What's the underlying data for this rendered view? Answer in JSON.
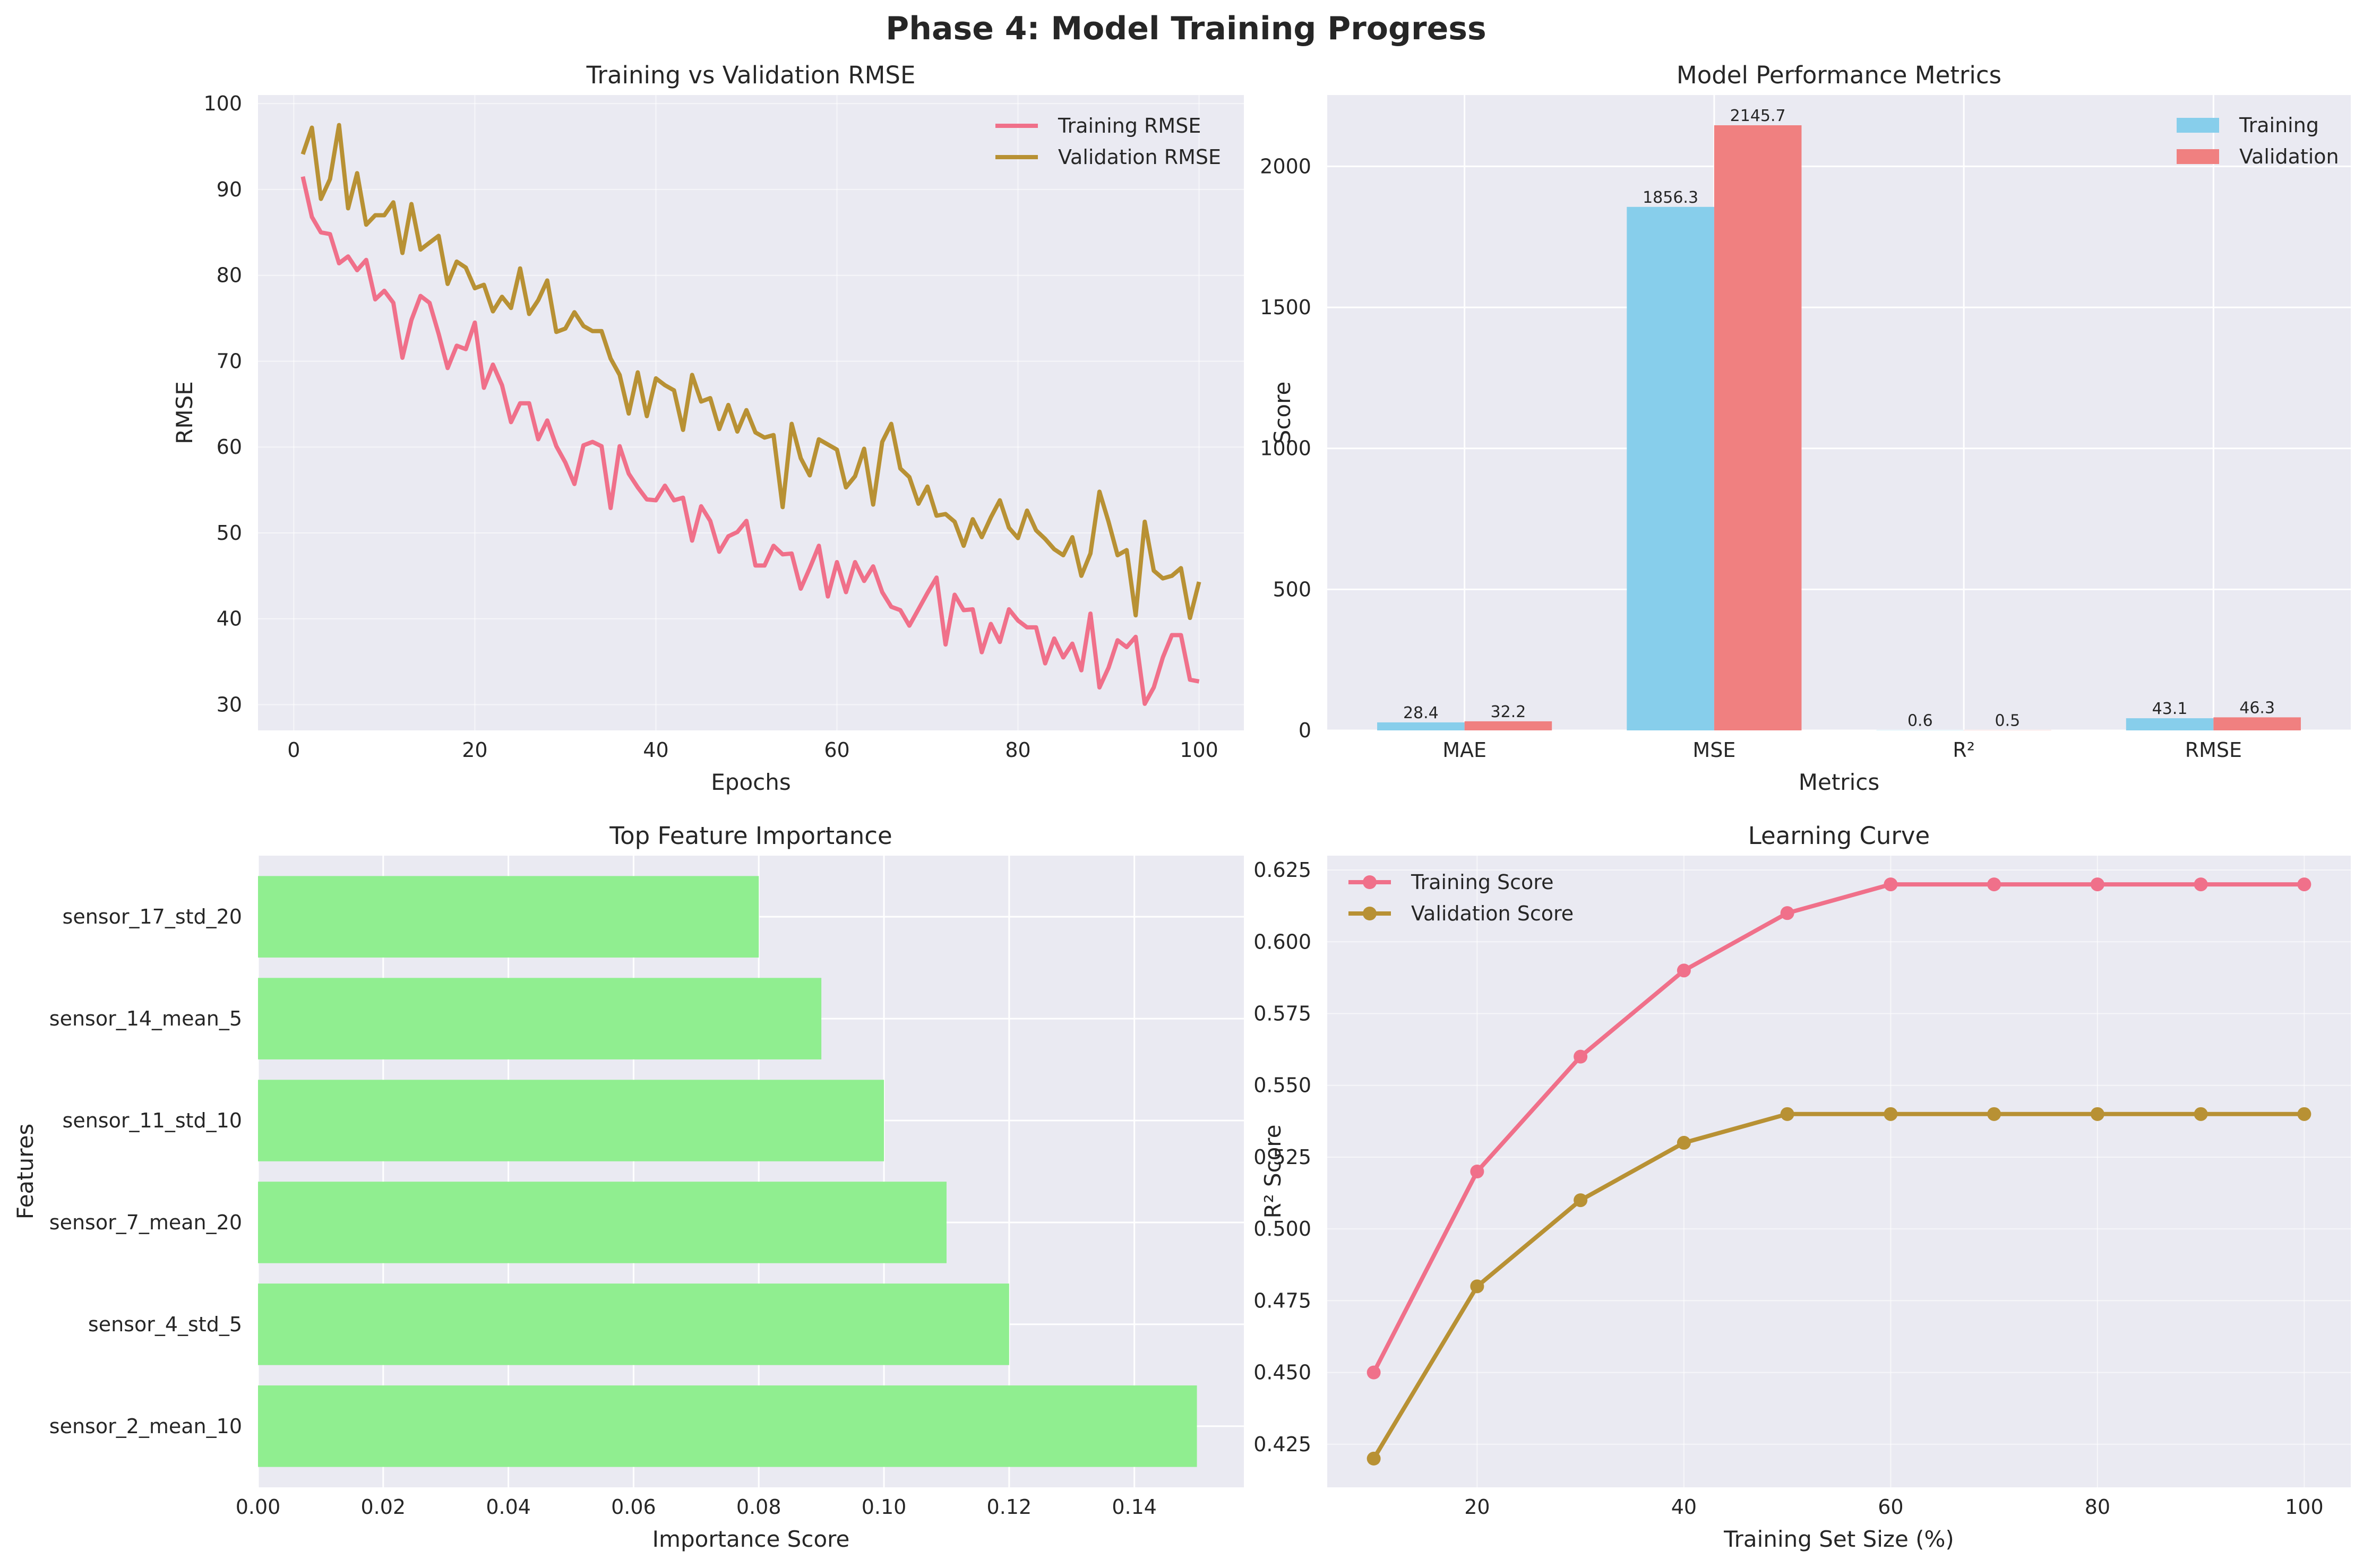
{
  "figure": {
    "suptitle": "Phase 4: Model Training Progress"
  },
  "chart_data": [
    {
      "type": "line",
      "title": "Training vs Validation RMSE",
      "xlabel": "Epochs",
      "ylabel": "RMSE",
      "xlim": [
        -3.95,
        104.95
      ],
      "ylim": [
        27.0,
        101.0
      ],
      "xticks": [
        0,
        20,
        40,
        60,
        80,
        100
      ],
      "yticks": [
        30,
        40,
        50,
        60,
        70,
        80,
        90,
        100
      ],
      "grid": true,
      "legend": "top-right",
      "x": [
        1,
        2,
        3,
        4,
        5,
        6,
        7,
        8,
        9,
        10,
        11,
        12,
        13,
        14,
        15,
        16,
        17,
        18,
        19,
        20,
        21,
        22,
        23,
        24,
        25,
        26,
        27,
        28,
        29,
        30,
        31,
        32,
        33,
        34,
        35,
        36,
        37,
        38,
        39,
        40,
        41,
        42,
        43,
        44,
        45,
        46,
        47,
        48,
        49,
        50,
        51,
        52,
        53,
        54,
        55,
        56,
        57,
        58,
        59,
        60,
        61,
        62,
        63,
        64,
        65,
        66,
        67,
        68,
        69,
        70,
        71,
        72,
        73,
        74,
        75,
        76,
        77,
        78,
        79,
        80,
        81,
        82,
        83,
        84,
        85,
        86,
        87,
        88,
        89,
        90,
        91,
        92,
        93,
        94,
        95,
        96,
        97,
        98,
        99,
        100
      ],
      "series": [
        {
          "name": "Training RMSE",
          "color": "#f0708a",
          "values": [
            91.5,
            86.8,
            85.0,
            84.8,
            81.4,
            82.2,
            80.6,
            81.8,
            77.2,
            78.2,
            76.8,
            70.4,
            74.8,
            77.6,
            76.8,
            73.2,
            69.2,
            71.8,
            71.4,
            74.5,
            66.9,
            69.6,
            67.2,
            62.9,
            65.1,
            65.1,
            60.9,
            63.1,
            60.1,
            58.2,
            55.7,
            60.2,
            60.6,
            60.1,
            52.9,
            60.1,
            56.9,
            55.3,
            53.9,
            53.8,
            55.5,
            53.8,
            54.1,
            49.1,
            53.1,
            51.4,
            47.8,
            49.6,
            50.1,
            51.4,
            46.2,
            46.2,
            48.5,
            47.5,
            47.6,
            43.5,
            45.9,
            48.5,
            42.6,
            46.6,
            43.1,
            46.6,
            44.4,
            46.1,
            43.1,
            41.4,
            41.0,
            39.2,
            41.1,
            43.0,
            44.8,
            37.0,
            42.8,
            41.0,
            41.1,
            36.1,
            39.4,
            37.3,
            41.1,
            39.8,
            39.0,
            39.0,
            34.8,
            37.7,
            35.5,
            37.1,
            34.0,
            40.6,
            32.0,
            34.3,
            37.5,
            36.7,
            37.9,
            30.1,
            32.0,
            35.5,
            38.1,
            38.1,
            32.9,
            32.7
          ]
        },
        {
          "name": "Validation RMSE",
          "color": "#b89134",
          "values": [
            94.1,
            97.2,
            88.9,
            91.2,
            97.5,
            87.8,
            91.9,
            85.9,
            87.0,
            87.0,
            88.5,
            82.6,
            88.3,
            83.0,
            83.8,
            84.6,
            79.0,
            81.6,
            80.9,
            78.5,
            78.9,
            75.8,
            77.5,
            76.2,
            80.8,
            75.5,
            77.1,
            79.4,
            73.4,
            73.8,
            75.7,
            74.1,
            73.5,
            73.5,
            70.3,
            68.4,
            63.9,
            68.7,
            63.6,
            68.0,
            67.2,
            66.6,
            62.0,
            68.4,
            65.3,
            65.7,
            62.1,
            64.9,
            61.8,
            64.3,
            61.7,
            61.1,
            61.4,
            53.0,
            62.7,
            58.7,
            56.7,
            60.9,
            60.3,
            59.7,
            55.3,
            56.6,
            59.8,
            53.3,
            60.6,
            62.7,
            57.5,
            56.5,
            53.4,
            55.4,
            52.0,
            52.2,
            51.3,
            48.5,
            51.6,
            49.5,
            51.8,
            53.8,
            50.6,
            49.4,
            52.6,
            50.3,
            49.3,
            48.1,
            47.4,
            49.5,
            45.0,
            47.6,
            54.8,
            51.3,
            47.4,
            48.0,
            40.4,
            51.3,
            45.6,
            44.7,
            45.0,
            45.9,
            40.1,
            44.3
          ]
        }
      ]
    },
    {
      "type": "bar",
      "title": "Model Performance Metrics",
      "xlabel": "Metrics",
      "ylabel": "Score",
      "categories": [
        "MAE",
        "MSE",
        "R²",
        "RMSE"
      ],
      "ylim": [
        0,
        2253
      ],
      "yticks": [
        0,
        500,
        1000,
        1500,
        2000
      ],
      "grid": true,
      "legend": "top-right",
      "series": [
        {
          "name": "Training",
          "color": "#87ceeb",
          "values": [
            28.4,
            1856.3,
            0.6,
            43.1
          ],
          "labels": [
            "28.4",
            "1856.3",
            "0.6",
            "43.1"
          ]
        },
        {
          "name": "Validation",
          "color": "#f08080",
          "values": [
            32.2,
            2145.7,
            0.5,
            46.3
          ],
          "labels": [
            "32.2",
            "2145.7",
            "0.5",
            "46.3"
          ]
        }
      ]
    },
    {
      "type": "bar",
      "orientation": "horizontal",
      "title": "Top Feature Importance",
      "xlabel": "Importance Score",
      "ylabel": "Features",
      "categories": [
        "sensor_2_mean_10",
        "sensor_4_std_5",
        "sensor_7_mean_20",
        "sensor_11_std_10",
        "sensor_14_mean_5",
        "sensor_17_std_20"
      ],
      "values": [
        0.15,
        0.12,
        0.11,
        0.1,
        0.09,
        0.08
      ],
      "color": "#90ee90",
      "xlim": [
        0,
        0.1575
      ],
      "xticks": [
        "0.00",
        "0.02",
        "0.04",
        "0.06",
        "0.08",
        "0.10",
        "0.12",
        "0.14"
      ],
      "grid": true
    },
    {
      "type": "line",
      "title": "Learning Curve",
      "xlabel": "Training Set Size (%)",
      "ylabel": "R² Score",
      "x": [
        10,
        20,
        30,
        40,
        50,
        60,
        70,
        80,
        90,
        100
      ],
      "xlim": [
        5.5,
        104.5
      ],
      "ylim": [
        0.41,
        0.63
      ],
      "xticks": [
        20,
        40,
        60,
        80,
        100
      ],
      "yticks": [
        "0.425",
        "0.450",
        "0.475",
        "0.500",
        "0.525",
        "0.550",
        "0.575",
        "0.600",
        "0.625"
      ],
      "grid": true,
      "legend": "top-left",
      "markers": true,
      "series": [
        {
          "name": "Training Score",
          "color": "#f0708a",
          "values": [
            0.45,
            0.52,
            0.56,
            0.59,
            0.61,
            0.62,
            0.62,
            0.62,
            0.62,
            0.62
          ]
        },
        {
          "name": "Validation Score",
          "color": "#b89134",
          "values": [
            0.42,
            0.48,
            0.51,
            0.53,
            0.54,
            0.54,
            0.54,
            0.54,
            0.54,
            0.54
          ]
        }
      ]
    }
  ]
}
